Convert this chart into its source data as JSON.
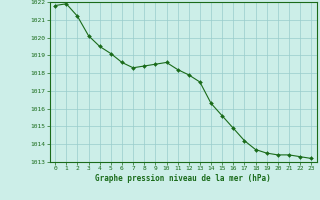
{
  "x": [
    0,
    1,
    2,
    3,
    4,
    5,
    6,
    7,
    8,
    9,
    10,
    11,
    12,
    13,
    14,
    15,
    16,
    17,
    18,
    19,
    20,
    21,
    22,
    23
  ],
  "y": [
    1021.8,
    1021.9,
    1021.2,
    1020.1,
    1019.5,
    1019.1,
    1018.6,
    1018.3,
    1018.4,
    1018.5,
    1018.6,
    1018.2,
    1017.9,
    1017.5,
    1016.3,
    1015.6,
    1014.9,
    1014.2,
    1013.7,
    1013.5,
    1013.4,
    1013.4,
    1013.3,
    1013.2
  ],
  "ylim": [
    1013,
    1022
  ],
  "yticks": [
    1013,
    1014,
    1015,
    1016,
    1017,
    1018,
    1019,
    1020,
    1021,
    1022
  ],
  "xticks": [
    0,
    1,
    2,
    3,
    4,
    5,
    6,
    7,
    8,
    9,
    10,
    11,
    12,
    13,
    14,
    15,
    16,
    17,
    18,
    19,
    20,
    21,
    22,
    23
  ],
  "line_color": "#1a6b1a",
  "marker_color": "#1a6b1a",
  "bg_color": "#cceee8",
  "grid_color": "#99cccc",
  "xlabel": "Graphe pression niveau de la mer (hPa)",
  "xlabel_color": "#1a6b1a",
  "tick_color": "#1a6b1a",
  "border_color": "#1a6b1a"
}
